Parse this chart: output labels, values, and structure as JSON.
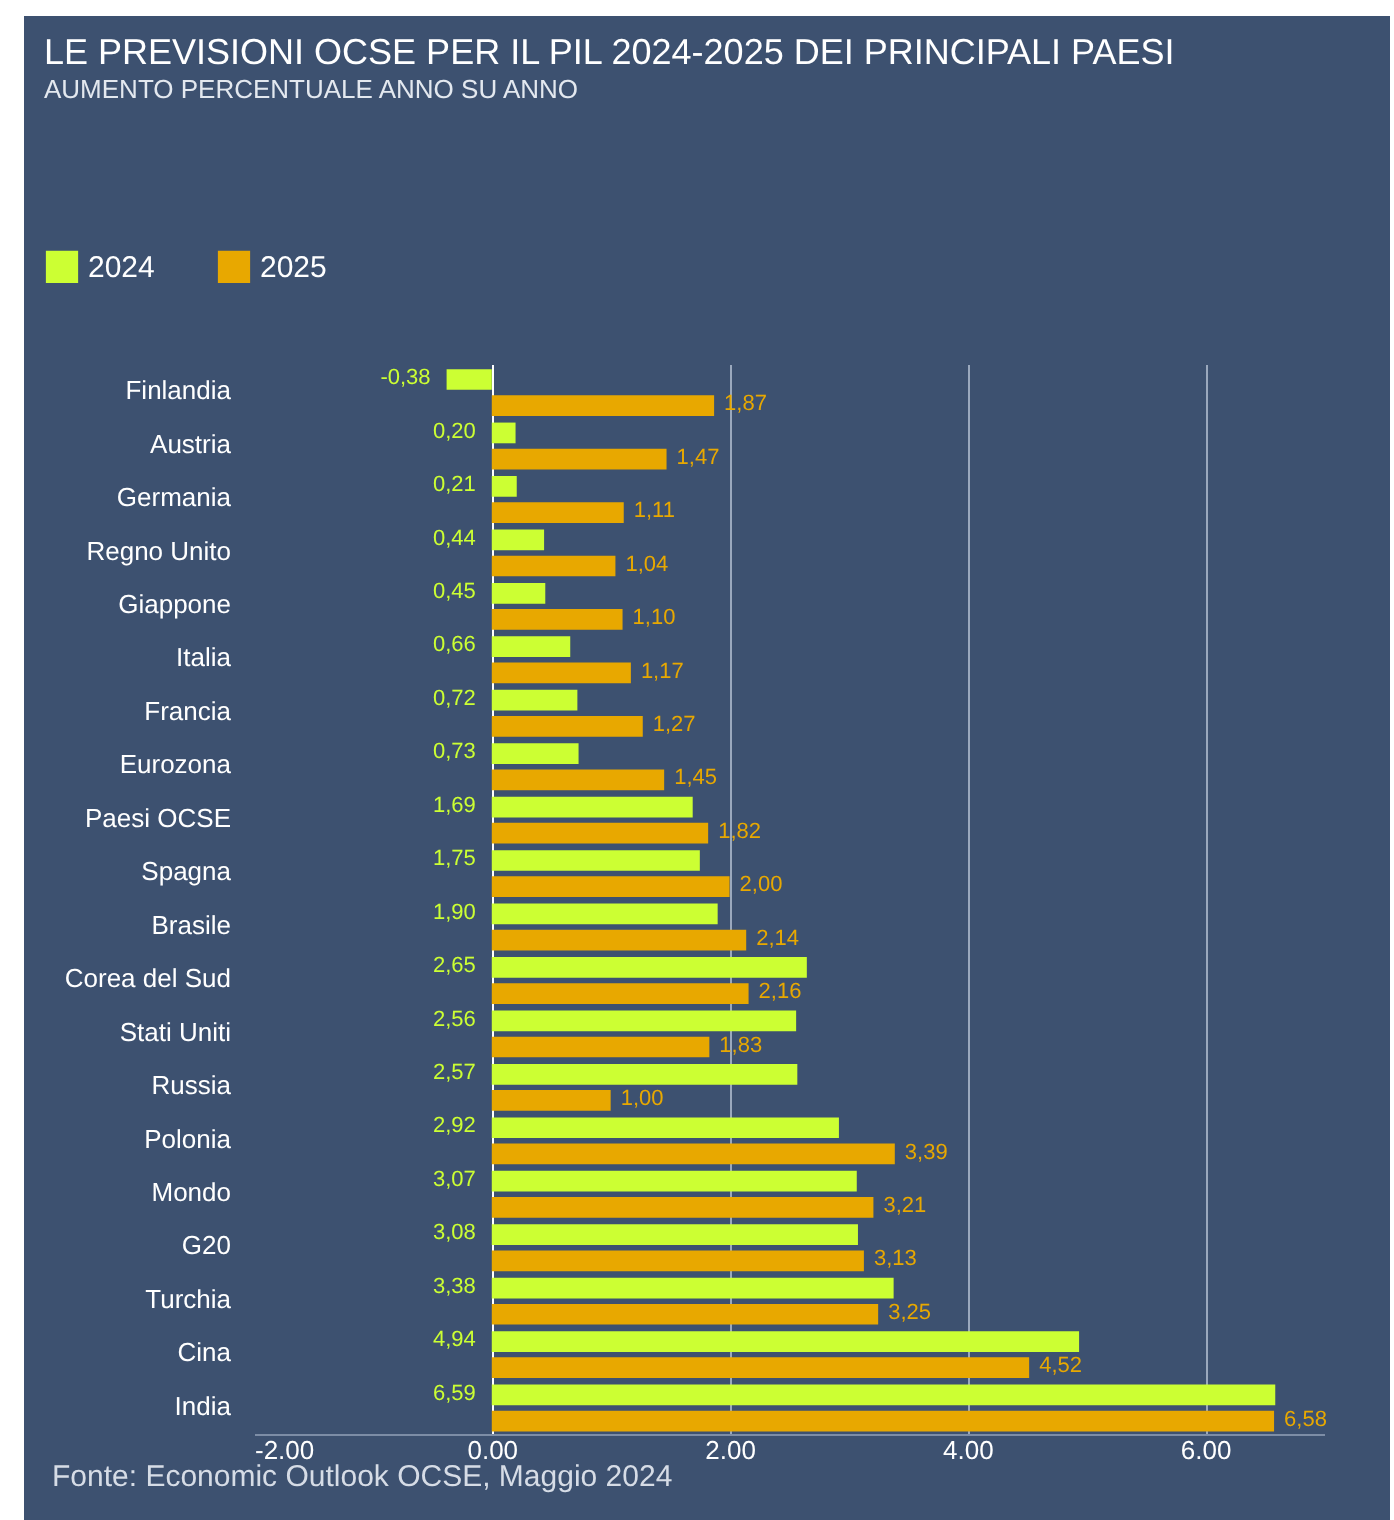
{
  "chart_data": {
    "type": "bar",
    "orientation": "horizontal",
    "title": "LE PREVISIONI OCSE PER IL PIL 2024-2025 DEI PRINCIPALI PAESI",
    "subtitle": "AUMENTO PERCENTUALE ANNO SU ANNO",
    "categories": [
      "Finlandia",
      "Austria",
      "Germania",
      "Regno Unito",
      "Giappone",
      "Italia",
      "Francia",
      "Eurozona",
      "Paesi OCSE",
      "Spagna",
      "Brasile",
      "Corea del Sud",
      "Stati Uniti",
      "Russia",
      "Polonia",
      "Mondo",
      "G20",
      "Turchia",
      "Cina",
      "India"
    ],
    "series": [
      {
        "name": "2024",
        "color": "#ccff33",
        "values": [
          -0.38,
          0.2,
          0.21,
          0.44,
          0.45,
          0.66,
          0.72,
          0.73,
          1.69,
          1.75,
          1.9,
          2.65,
          2.56,
          2.57,
          2.92,
          3.07,
          3.08,
          3.38,
          4.94,
          6.59
        ],
        "value_labels": [
          "-0,38",
          "0,20",
          "0,21",
          "0,44",
          "0,45",
          "0,66",
          "0,72",
          "0,73",
          "1,69",
          "1,75",
          "1,90",
          "2,65",
          "2,56",
          "2,57",
          "2,92",
          "3,07",
          "3,08",
          "3,38",
          "4,94",
          "6,59"
        ]
      },
      {
        "name": "2025",
        "color": "#e8a800",
        "values": [
          1.87,
          1.47,
          1.11,
          1.04,
          1.1,
          1.17,
          1.27,
          1.45,
          1.82,
          2.0,
          2.14,
          2.16,
          1.83,
          1.0,
          3.39,
          3.21,
          3.13,
          3.25,
          4.52,
          6.58
        ],
        "value_labels": [
          "1,87",
          "1,47",
          "1,11",
          "1,04",
          "1,10",
          "1,17",
          "1,27",
          "1,45",
          "1,82",
          "2,00",
          "2,14",
          "2,16",
          "1,83",
          "1,00",
          "3,39",
          "3,21",
          "3,13",
          "3,25",
          "4,52",
          "6,58"
        ]
      }
    ],
    "xlim": [
      -2,
      7
    ],
    "xticks": [
      {
        "value": -2,
        "label": "-2.00"
      },
      {
        "value": 0,
        "label": "0.00"
      },
      {
        "value": 2,
        "label": "2.00"
      },
      {
        "value": 4,
        "label": "4.00"
      },
      {
        "value": 6,
        "label": "6.00"
      }
    ],
    "grid": "x",
    "legend": "top left",
    "annotations": [
      "Fonte: Economic Outlook OCSE, Maggio 2024"
    ]
  }
}
